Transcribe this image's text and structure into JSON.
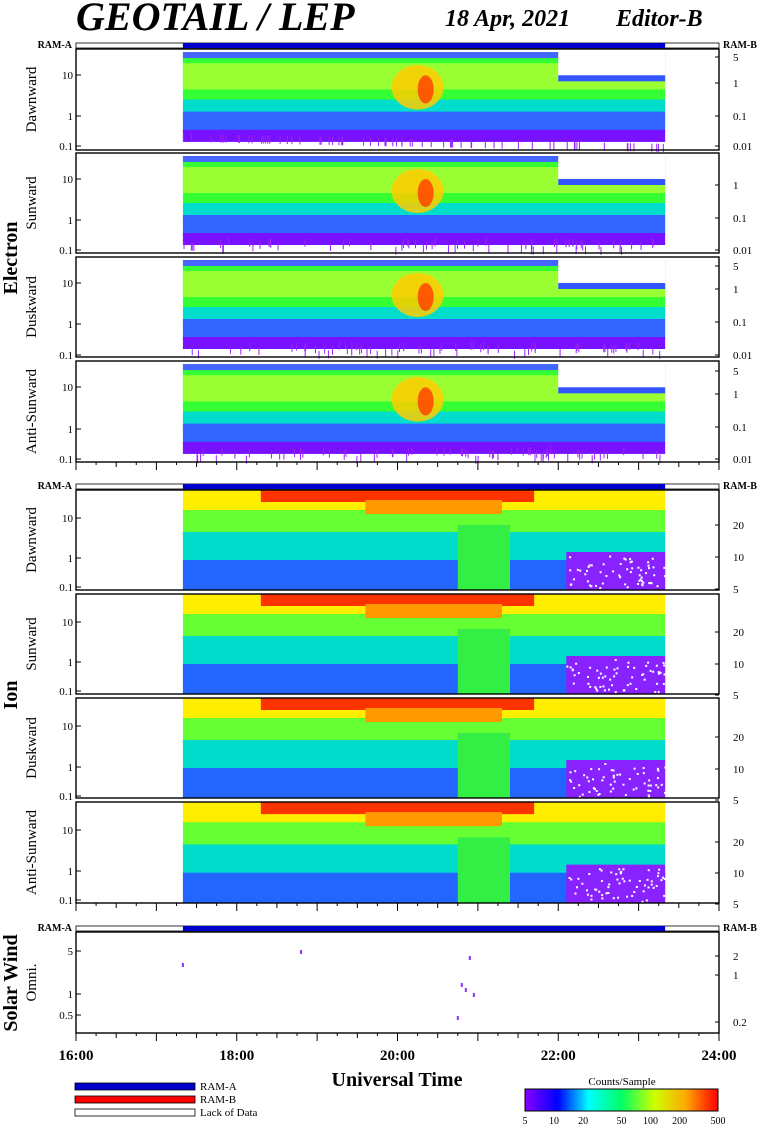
{
  "header": {
    "title": "GEOTAIL / LEP",
    "date": "18 Apr, 2021",
    "editor": "Editor-B"
  },
  "labels": {
    "ram_a": "RAM-A",
    "ram_b": "RAM-B",
    "electron_group": "Electron",
    "ion_group": "Ion",
    "solar_wind_group": "Solar Wind",
    "x_axis_title": "Universal Time"
  },
  "legend": {
    "ram_a": "RAM-A",
    "ram_b": "RAM-B",
    "lack": "Lack of Data",
    "colors": {
      "ram_a": "#0000cc",
      "ram_b": "#ff0000",
      "lack": "#ffffff"
    }
  },
  "colorbar": {
    "title": "Counts/Sample",
    "ticks": [
      "5",
      "10",
      "20",
      "50",
      "100",
      "200",
      "500"
    ],
    "scale": "log",
    "range": [
      5,
      500
    ]
  },
  "chart_data": {
    "type": "heatmap",
    "x_axis": {
      "label": "Universal Time",
      "ticks": [
        "16:00",
        "18:00",
        "20:00",
        "22:00",
        "24:00"
      ],
      "range_hours": [
        16,
        24
      ]
    },
    "data_coverage_hours": [
      17.33,
      23.33
    ],
    "panels": [
      {
        "group": "Electron",
        "name": "Dawnward",
        "left_ticks": [
          "10",
          "1",
          "0.1"
        ],
        "right_ticks": [
          "5",
          "1",
          "0.1",
          "0.01"
        ]
      },
      {
        "group": "Electron",
        "name": "Sunward",
        "left_ticks": [
          "10",
          "1",
          "0.1"
        ],
        "right_ticks": [
          "1",
          "0.1",
          "0.01"
        ]
      },
      {
        "group": "Electron",
        "name": "Duskward",
        "left_ticks": [
          "10",
          "1",
          "0.1"
        ],
        "right_ticks": [
          "5",
          "1",
          "0.1",
          "0.01"
        ]
      },
      {
        "group": "Electron",
        "name": "Anti-Sunward",
        "left_ticks": [
          "10",
          "1",
          "0.1"
        ],
        "right_ticks": [
          "5",
          "1",
          "0.1",
          "0.01"
        ]
      },
      {
        "group": "Ion",
        "name": "Dawnward",
        "left_ticks": [
          "10",
          "1",
          "0.1"
        ],
        "right_ticks": [
          "20",
          "10",
          "5"
        ]
      },
      {
        "group": "Ion",
        "name": "Sunward",
        "left_ticks": [
          "10",
          "1",
          "0.1"
        ],
        "right_ticks": [
          "20",
          "10",
          "5"
        ]
      },
      {
        "group": "Ion",
        "name": "Duskward",
        "left_ticks": [
          "10",
          "1",
          "0.1"
        ],
        "right_ticks": [
          "20",
          "10",
          "5"
        ]
      },
      {
        "group": "Ion",
        "name": "Anti-Sunward",
        "left_ticks": [
          "10",
          "1",
          "0.1"
        ],
        "right_ticks": [
          "20",
          "10",
          "5"
        ]
      },
      {
        "group": "Solar Wind",
        "name": "Omni.",
        "left_ticks": [
          "5",
          "1",
          "0.5"
        ],
        "right_ticks": [
          "2",
          "1",
          "0.2"
        ]
      }
    ]
  }
}
